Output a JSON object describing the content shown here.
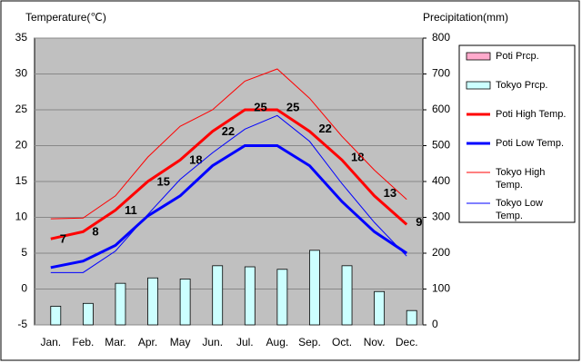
{
  "chart_data": {
    "type": "line",
    "y_label": "Temperature(℃)",
    "y2_label": "Precipitation(mm)",
    "categories": [
      "Jan.",
      "Feb.",
      "Mar.",
      "Apr.",
      "May",
      "Jun.",
      "Jul.",
      "Aug.",
      "Sep.",
      "Oct.",
      "Nov.",
      "Dec."
    ],
    "ylim": [
      -5,
      35
    ],
    "yticks": [
      -5,
      0,
      5,
      10,
      15,
      20,
      25,
      30,
      35
    ],
    "y2lim": [
      0,
      800
    ],
    "y2ticks": [
      0,
      100,
      200,
      300,
      400,
      500,
      600,
      700,
      800
    ],
    "grid": true,
    "legend": "right",
    "series": [
      {
        "name": "Poti Prcp.",
        "type": "bar",
        "axis": "y2",
        "color": "#ffaacc",
        "values": [
          null,
          null,
          null,
          null,
          null,
          null,
          null,
          null,
          null,
          null,
          null,
          null
        ]
      },
      {
        "name": "Tokyo Prcp.",
        "type": "bar",
        "axis": "y2",
        "color": "#ccffff",
        "values": [
          52,
          60,
          116,
          131,
          128,
          165,
          162,
          155,
          208,
          165,
          93,
          40
        ]
      },
      {
        "name": "Poti High Temp.",
        "type": "line",
        "color": "#ff0000",
        "width": 3,
        "labels": true,
        "values": [
          7,
          8,
          11,
          15,
          18,
          22,
          25,
          25,
          22,
          18,
          13,
          9
        ]
      },
      {
        "name": "Poti Low Temp.",
        "type": "line",
        "color": "#0000ff",
        "width": 3,
        "values": [
          3.0,
          3.9,
          6.1,
          10.2,
          13.0,
          17.2,
          20.0,
          20.0,
          17.2,
          12.2,
          8.0,
          5.0
        ]
      },
      {
        "name": "Tokyo High Temp.",
        "type": "line",
        "color": "#ff0000",
        "width": 1,
        "values": [
          9.8,
          9.9,
          13.0,
          18.4,
          22.7,
          25.0,
          29.0,
          30.7,
          26.6,
          21.3,
          16.6,
          12.5
        ]
      },
      {
        "name": "Tokyo Low Temp.",
        "type": "line",
        "color": "#0000ff",
        "width": 1,
        "values": [
          2.3,
          2.3,
          5.3,
          10.4,
          15.3,
          19.0,
          22.3,
          24.2,
          20.6,
          14.7,
          9.3,
          4.6
        ]
      }
    ]
  }
}
